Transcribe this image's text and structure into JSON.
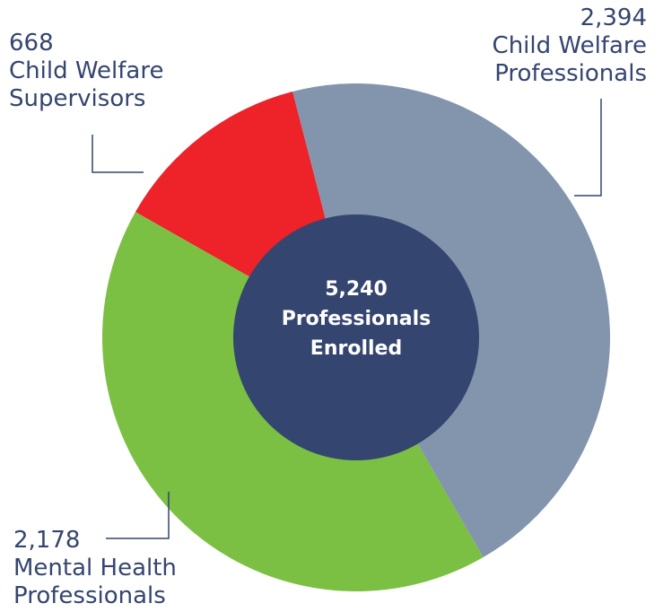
{
  "chart_data": {
    "type": "donut",
    "categories": [
      "Child Welfare Professionals",
      "Mental Health Professionals",
      "Child Welfare Supervisors"
    ],
    "values": [
      2394,
      2178,
      668
    ],
    "value_labels": [
      "2,394",
      "2,178",
      "668"
    ],
    "colors": [
      "#8395ad",
      "#7bbf43",
      "#ee2229"
    ],
    "center_label": [
      "5,240",
      "Professionals",
      "Enrolled"
    ],
    "center_color": "#34456f"
  }
}
